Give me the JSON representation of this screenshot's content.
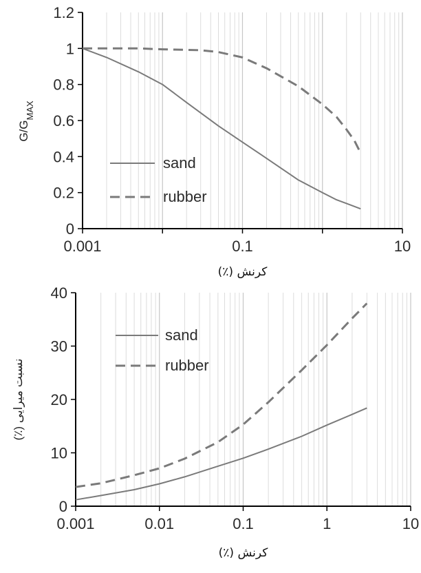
{
  "chart_data": [
    {
      "type": "line",
      "ylabel_main": "G/G",
      "ylabel_sub": "MAX",
      "xlabel": "کرنش (٪)",
      "xscale": "log",
      "xlim": [
        0.001,
        10
      ],
      "ylim": [
        0,
        1.2
      ],
      "grid": "x-minor",
      "legend_position": "bottom-left",
      "xtick_labels": [
        "0.001",
        "0.1",
        "10"
      ],
      "xtick_values": [
        0.001,
        0.1,
        10
      ],
      "ytick_labels": [
        "0",
        "0.2",
        "0.4",
        "0.6",
        "0.8",
        "1",
        "1.2"
      ],
      "ytick_values": [
        0,
        0.2,
        0.4,
        0.6,
        0.8,
        1,
        1.2
      ],
      "series": [
        {
          "name": "sand",
          "style": "solid",
          "color": "#7a7a7a",
          "points": [
            [
              0.001,
              1.0
            ],
            [
              0.002,
              0.95
            ],
            [
              0.005,
              0.87
            ],
            [
              0.01,
              0.8
            ],
            [
              0.02,
              0.7
            ],
            [
              0.05,
              0.57
            ],
            [
              0.1,
              0.48
            ],
            [
              0.2,
              0.39
            ],
            [
              0.5,
              0.27
            ],
            [
              1,
              0.2
            ],
            [
              1.5,
              0.16
            ],
            [
              2,
              0.14
            ],
            [
              3,
              0.11
            ]
          ]
        },
        {
          "name": "rubber",
          "style": "dashed",
          "color": "#7a7a7a",
          "points": [
            [
              0.001,
              1.0
            ],
            [
              0.005,
              1.0
            ],
            [
              0.01,
              0.995
            ],
            [
              0.03,
              0.99
            ],
            [
              0.05,
              0.98
            ],
            [
              0.1,
              0.95
            ],
            [
              0.2,
              0.89
            ],
            [
              0.5,
              0.79
            ],
            [
              1,
              0.69
            ],
            [
              1.5,
              0.62
            ],
            [
              2,
              0.55
            ],
            [
              2.5,
              0.49
            ],
            [
              3,
              0.42
            ]
          ]
        }
      ]
    },
    {
      "type": "line",
      "ylabel": "نسبت میرایی (٪)",
      "xlabel": "کرنش (٪)",
      "xscale": "log",
      "xlim": [
        0.001,
        10
      ],
      "ylim": [
        0,
        40
      ],
      "grid": "x-minor",
      "legend_position": "top-left",
      "xtick_labels": [
        "0.001",
        "0.01",
        "0.1",
        "1",
        "10"
      ],
      "xtick_values": [
        0.001,
        0.01,
        0.1,
        1,
        10
      ],
      "ytick_labels": [
        "0",
        "10",
        "20",
        "30",
        "40"
      ],
      "ytick_values": [
        0,
        10,
        20,
        30,
        40
      ],
      "series": [
        {
          "name": "sand",
          "style": "solid",
          "color": "#7a7a7a",
          "points": [
            [
              0.001,
              1.2
            ],
            [
              0.002,
              2.0
            ],
            [
              0.005,
              3.1
            ],
            [
              0.01,
              4.2
            ],
            [
              0.02,
              5.5
            ],
            [
              0.05,
              7.5
            ],
            [
              0.1,
              9.0
            ],
            [
              0.2,
              10.7
            ],
            [
              0.5,
              13.1
            ],
            [
              1,
              15.2
            ],
            [
              2,
              17.2
            ],
            [
              3,
              18.4
            ]
          ]
        },
        {
          "name": "rubber",
          "style": "dashed",
          "color": "#7a7a7a",
          "points": [
            [
              0.001,
              3.6
            ],
            [
              0.002,
              4.3
            ],
            [
              0.005,
              5.8
            ],
            [
              0.01,
              7.1
            ],
            [
              0.02,
              8.9
            ],
            [
              0.05,
              12.0
            ],
            [
              0.1,
              15.3
            ],
            [
              0.2,
              19.5
            ],
            [
              0.5,
              25.5
            ],
            [
              1,
              30.2
            ],
            [
              2,
              35.2
            ],
            [
              3,
              38.0
            ]
          ]
        }
      ]
    }
  ]
}
